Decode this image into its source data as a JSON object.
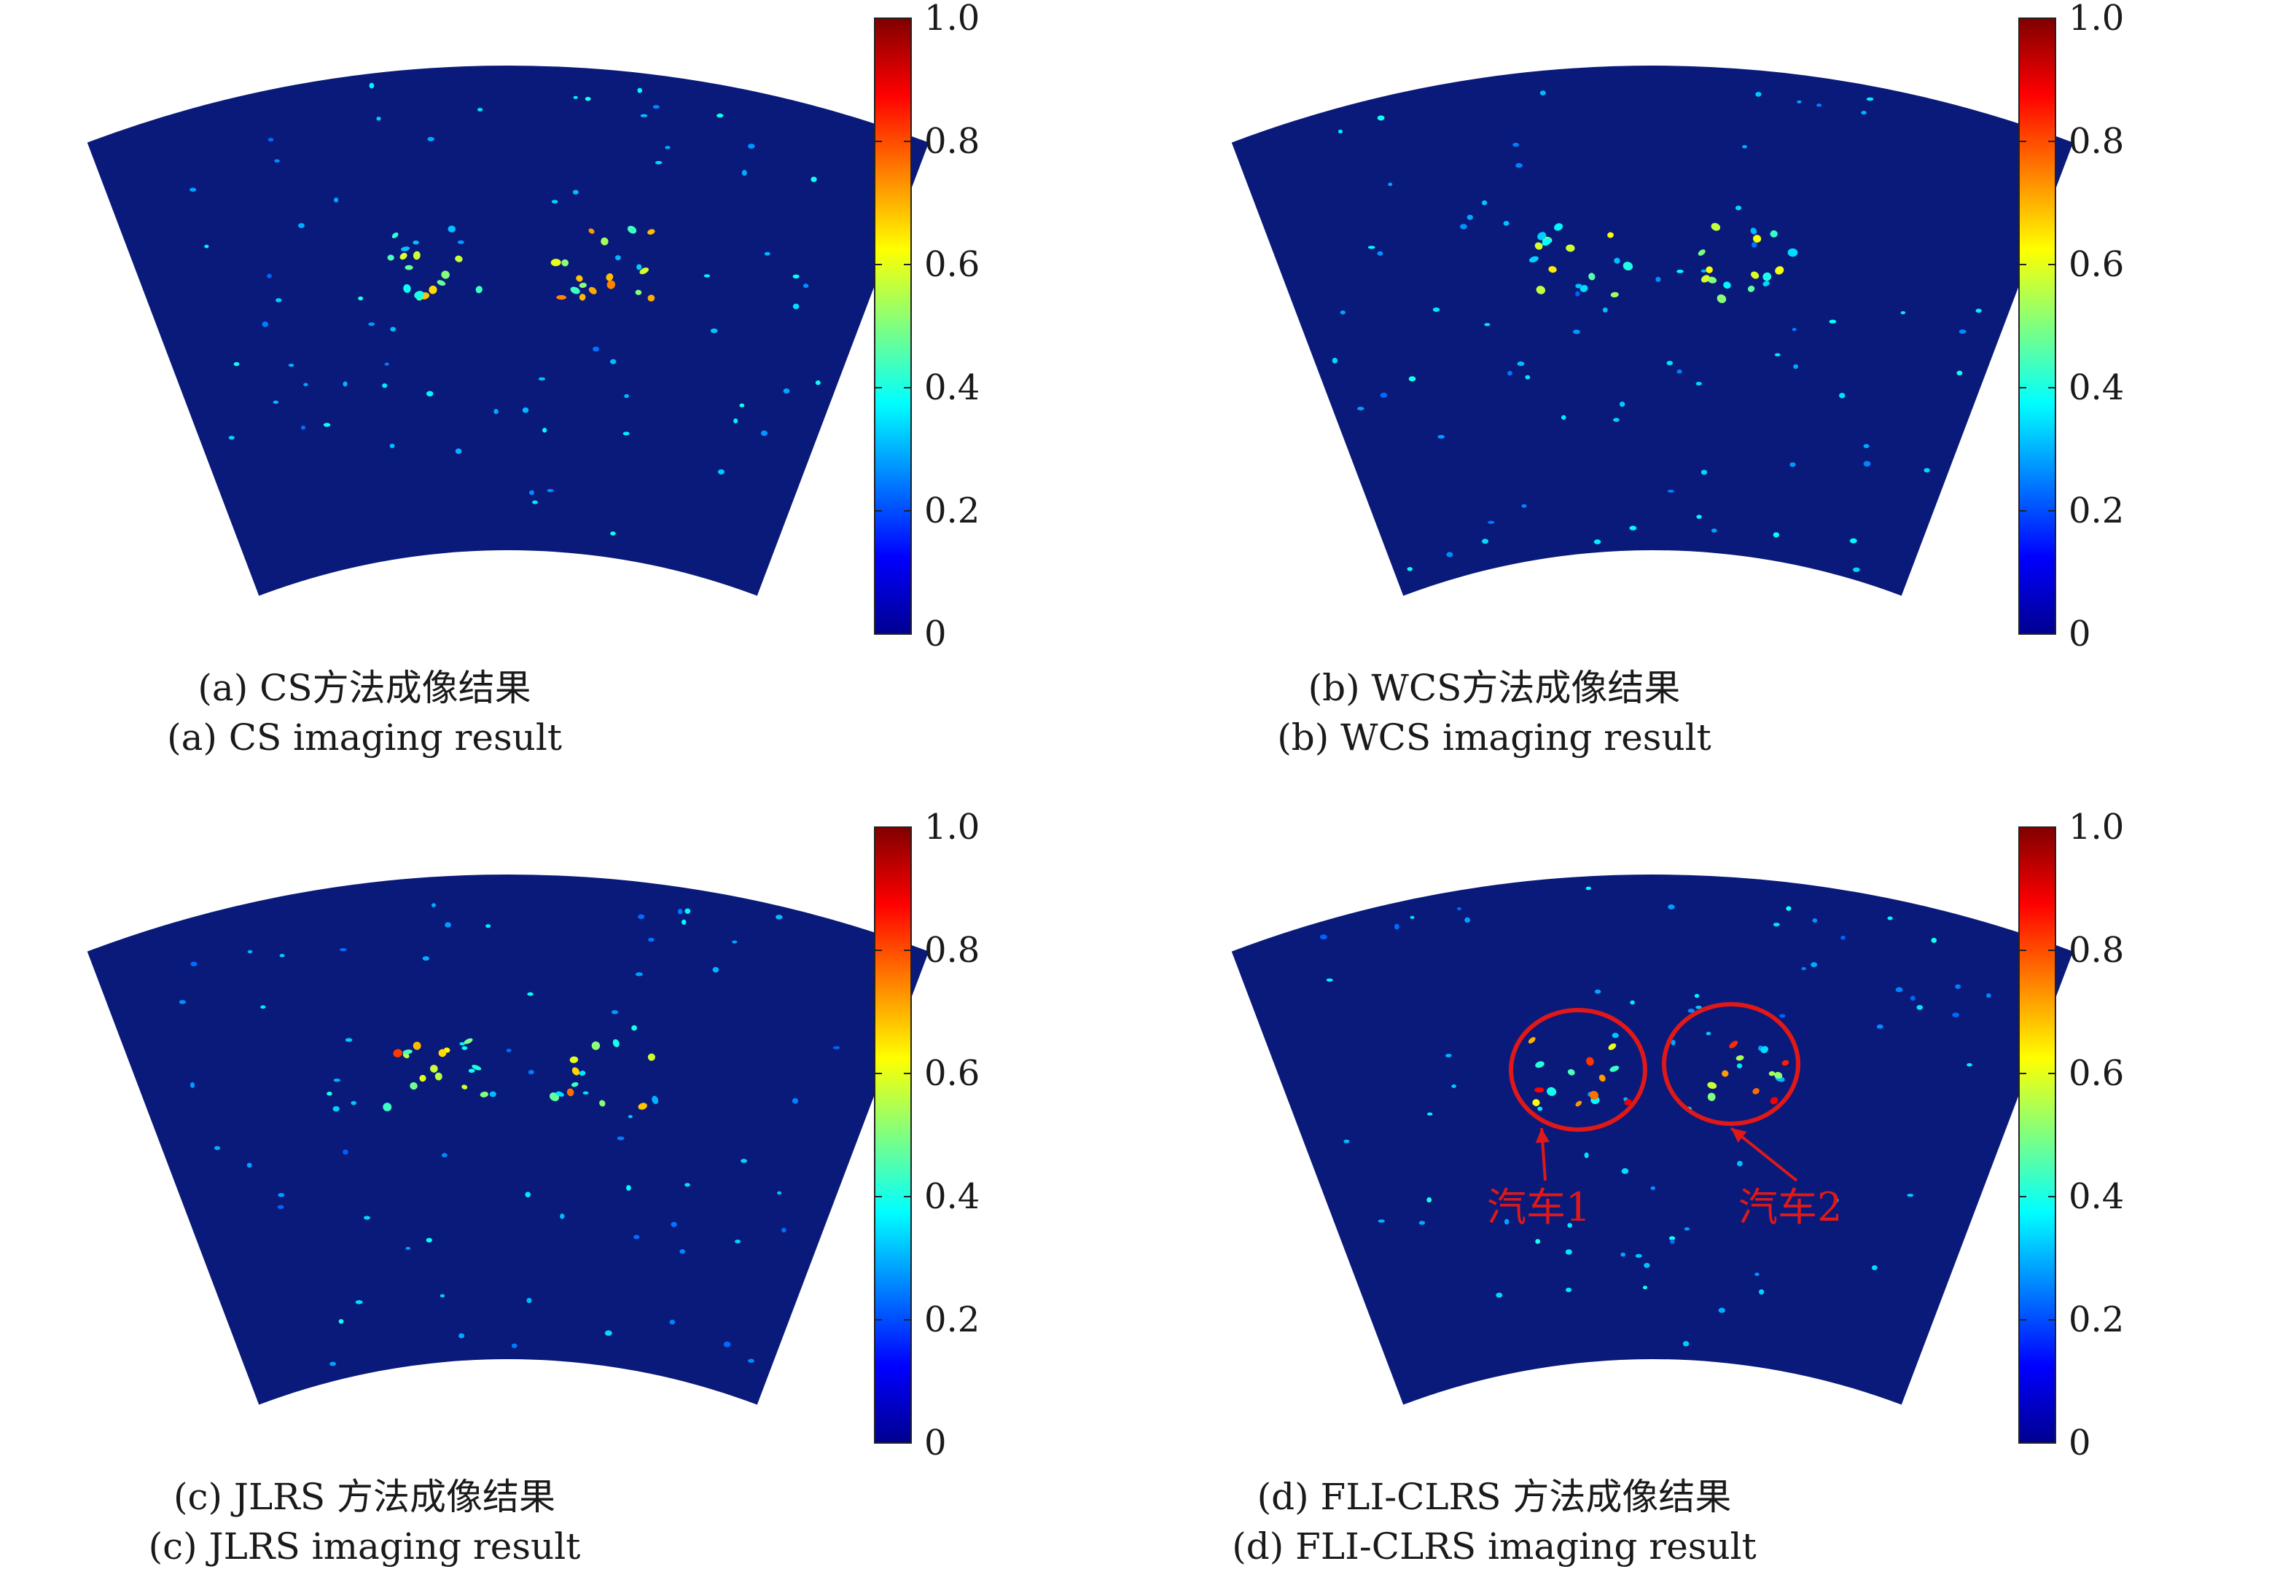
{
  "colorbar": {
    "ticks": [
      "0",
      "0.2",
      "0.4",
      "0.6",
      "0.8",
      "1.0"
    ],
    "tick_values": [
      0,
      0.2,
      0.4,
      0.6,
      0.8,
      1.0
    ],
    "colormap": "jet",
    "colors": [
      "#00008f",
      "#0000ff",
      "#00ffff",
      "#ffff00",
      "#ff0000",
      "#800000"
    ]
  },
  "background_color": "#0a1a7a",
  "panels": [
    {
      "id": "a",
      "caption_cn": "(a) CS方法成像结果",
      "caption_en": "(a) CS imaging result",
      "intensity": 0.45,
      "seed": 11
    },
    {
      "id": "b",
      "caption_cn": "(b) WCS方法成像结果",
      "caption_en": "(b) WCS imaging result",
      "intensity": 0.35,
      "seed": 29
    },
    {
      "id": "c",
      "caption_cn": "(c) JLRS 方法成像结果",
      "caption_en": "(c) JLRS imaging result",
      "intensity": 0.55,
      "seed": 47
    },
    {
      "id": "d",
      "caption_cn": "(d) FLI-CLRS 方法成像结果",
      "caption_en": "(d) FLI-CLRS imaging result",
      "intensity": 0.6,
      "seed": 83,
      "annotations": [
        {
          "label": "汽车1"
        },
        {
          "label": "汽车2"
        }
      ]
    }
  ]
}
